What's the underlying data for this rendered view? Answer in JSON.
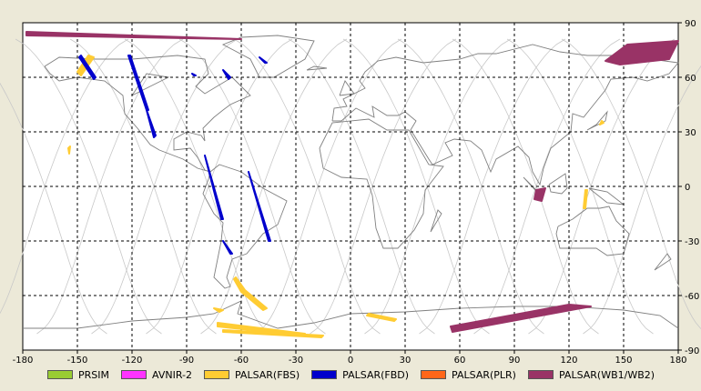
{
  "map": {
    "lon_range": [
      -180,
      180
    ],
    "lat_range": [
      -90,
      90
    ],
    "x_ticks": [
      "-180",
      "-150",
      "-120",
      "-90",
      "-60",
      "-30",
      "0",
      "30",
      "60",
      "90",
      "120",
      "150",
      "180"
    ],
    "y_ticks": [
      "90",
      "60",
      "30",
      "0",
      "-30",
      "-60",
      "-90"
    ],
    "grid": "dotted",
    "background": "#ffffff",
    "coastline_color": "#808080",
    "track_color": "#c8c8c8"
  },
  "legend": {
    "items": [
      {
        "label": "PRSIM",
        "color": "#99cc33"
      },
      {
        "label": "AVNIR-2",
        "color": "#ff33ff"
      },
      {
        "label": "PALSAR(FBS)",
        "color": "#ffcc33"
      },
      {
        "label": "PALSAR(FBD)",
        "color": "#0000cc"
      },
      {
        "label": "PALSAR(PLR)",
        "color": "#ff6619"
      },
      {
        "label": "PALSAR(WB1/WB2)",
        "color": "#993366"
      }
    ]
  },
  "chart_data": {
    "type": "map",
    "x_axis": {
      "range": [
        -180,
        180
      ],
      "ticks": [
        -180,
        -150,
        -120,
        -90,
        -60,
        -30,
        0,
        30,
        60,
        90,
        120,
        150,
        180
      ]
    },
    "y_axis": {
      "range": [
        -90,
        90
      ],
      "ticks": [
        90,
        60,
        30,
        0,
        -30,
        -60,
        -90
      ]
    },
    "scenes": {
      "PALSAR(WB1/WB2)": [
        [
          [
            -178,
            85
          ],
          [
            -60,
            81
          ],
          [
            -178,
            83
          ]
        ],
        [
          [
            140,
            69
          ],
          [
            152,
            78
          ],
          [
            182,
            80
          ],
          [
            175,
            70
          ],
          [
            148,
            67
          ]
        ],
        [
          [
            102,
            -2
          ],
          [
            107,
            -1
          ],
          [
            105,
            -8
          ],
          [
            101,
            -7
          ]
        ],
        [
          [
            55,
            -77
          ],
          [
            120,
            -65
          ],
          [
            132,
            -66
          ],
          [
            56,
            -80
          ]
        ]
      ],
      "PALSAR(FBS)": [
        [
          [
            -150,
            63
          ],
          [
            -144,
            72
          ],
          [
            -141,
            71
          ],
          [
            -148,
            61
          ]
        ],
        [
          [
            -155,
            21
          ],
          [
            -154,
            22
          ],
          [
            -154.5,
            18
          ]
        ],
        [
          [
            -63,
            -50
          ],
          [
            -58,
            -57
          ],
          [
            -46,
            -67
          ],
          [
            -48,
            -68
          ],
          [
            -60,
            -58
          ],
          [
            -64,
            -51
          ]
        ],
        [
          [
            -73,
            -75
          ],
          [
            -25,
            -81
          ],
          [
            -27,
            -82
          ],
          [
            -73,
            -77
          ]
        ],
        [
          [
            -70,
            -79
          ],
          [
            -15,
            -82
          ],
          [
            -16,
            -83
          ],
          [
            -70,
            -80
          ]
        ],
        [
          [
            -75,
            -67
          ],
          [
            -70,
            -68
          ],
          [
            -72,
            -69
          ]
        ],
        [
          [
            10,
            -70
          ],
          [
            25,
            -73
          ],
          [
            24,
            -74
          ],
          [
            9,
            -71
          ]
        ],
        [
          [
            128,
            -12
          ],
          [
            129,
            -2
          ],
          [
            130,
            -2
          ],
          [
            129,
            -12
          ]
        ],
        [
          [
            137,
            34
          ],
          [
            138,
            36
          ],
          [
            139,
            35
          ]
        ]
      ],
      "PALSAR(FBD)": [
        [
          [
            -148,
            72
          ],
          [
            -140,
            60
          ],
          [
            -141,
            59
          ],
          [
            -149,
            71
          ]
        ],
        [
          [
            -122,
            72
          ],
          [
            -112,
            42
          ],
          [
            -111,
            42
          ],
          [
            -121,
            72
          ]
        ],
        [
          [
            -112,
            42
          ],
          [
            -108,
            27
          ],
          [
            -107,
            28
          ]
        ],
        [
          [
            -86,
            61
          ],
          [
            -87,
            62
          ],
          [
            -85,
            61
          ]
        ],
        [
          [
            -70,
            64
          ],
          [
            -66,
            60
          ],
          [
            -67,
            59
          ]
        ],
        [
          [
            -50,
            71
          ],
          [
            -46,
            68
          ],
          [
            -47,
            68
          ]
        ],
        [
          [
            -80,
            17
          ],
          [
            -71,
            -18
          ],
          [
            -70,
            -18
          ]
        ],
        [
          [
            -70,
            -30
          ],
          [
            -66,
            -37
          ],
          [
            -65,
            -37
          ]
        ],
        [
          [
            -56,
            8
          ],
          [
            -45,
            -30
          ],
          [
            -44,
            -30
          ]
        ]
      ]
    },
    "coastlines": [
      [
        [
          -168,
          66
        ],
        [
          -160,
          71
        ],
        [
          -140,
          70
        ],
        [
          -120,
          70
        ],
        [
          -95,
          72
        ],
        [
          -80,
          70
        ],
        [
          -78,
          62
        ],
        [
          -85,
          55
        ],
        [
          -80,
          51
        ],
        [
          -65,
          60
        ],
        [
          -55,
          50
        ],
        [
          -66,
          45
        ],
        [
          -70,
          42
        ],
        [
          -75,
          38
        ],
        [
          -81,
          32
        ],
        [
          -80,
          25
        ],
        [
          -82,
          28
        ],
        [
          -90,
          30
        ],
        [
          -97,
          26
        ],
        [
          -97,
          20
        ],
        [
          -88,
          21
        ],
        [
          -84,
          16
        ],
        [
          -80,
          9
        ],
        [
          -77,
          8
        ],
        [
          -78,
          4
        ],
        [
          -81,
          -4
        ],
        [
          -75,
          -15
        ],
        [
          -70,
          -20
        ],
        [
          -71,
          -30
        ],
        [
          -73,
          -40
        ],
        [
          -75,
          -50
        ],
        [
          -69,
          -56
        ],
        [
          -66,
          -55
        ],
        [
          -68,
          -50
        ],
        [
          -65,
          -40
        ],
        [
          -57,
          -37
        ],
        [
          -48,
          -26
        ],
        [
          -40,
          -21
        ],
        [
          -35,
          -8
        ],
        [
          -48,
          -1
        ],
        [
          -60,
          8
        ],
        [
          -72,
          12
        ],
        [
          -77,
          8
        ],
        [
          -84,
          10
        ],
        [
          -92,
          15
        ],
        [
          -105,
          20
        ],
        [
          -110,
          23
        ],
        [
          -117,
          32
        ],
        [
          -124,
          40
        ],
        [
          -125,
          50
        ],
        [
          -135,
          58
        ],
        [
          -150,
          60
        ],
        [
          -160,
          58
        ],
        [
          -165,
          62
        ],
        [
          -168,
          66
        ]
      ],
      [
        [
          -50,
          60
        ],
        [
          -42,
          60
        ],
        [
          -25,
          70
        ],
        [
          -20,
          80
        ],
        [
          -40,
          83
        ],
        [
          -60,
          82
        ],
        [
          -70,
          78
        ],
        [
          -55,
          70
        ],
        [
          -50,
          60
        ]
      ],
      [
        [
          -10,
          36
        ],
        [
          -9,
          43
        ],
        [
          -2,
          44
        ],
        [
          -4,
          48
        ],
        [
          2,
          51
        ],
        [
          8,
          54
        ],
        [
          5,
          58
        ],
        [
          8,
          63
        ],
        [
          15,
          69
        ],
        [
          25,
          71
        ],
        [
          40,
          68
        ],
        [
          60,
          70
        ],
        [
          70,
          73
        ],
        [
          80,
          73
        ],
        [
          100,
          78
        ],
        [
          115,
          74
        ],
        [
          130,
          72
        ],
        [
          150,
          72
        ],
        [
          165,
          70
        ],
        [
          180,
          68
        ],
        [
          175,
          62
        ],
        [
          163,
          58
        ],
        [
          155,
          60
        ],
        [
          143,
          59
        ],
        [
          140,
          53
        ],
        [
          132,
          43
        ],
        [
          128,
          38
        ],
        [
          122,
          40
        ],
        [
          121,
          30
        ],
        [
          110,
          21
        ],
        [
          106,
          10
        ],
        [
          104,
          1
        ],
        [
          100,
          8
        ],
        [
          98,
          16
        ],
        [
          92,
          22
        ],
        [
          80,
          15
        ],
        [
          77,
          8
        ],
        [
          72,
          20
        ],
        [
          66,
          25
        ],
        [
          57,
          26
        ],
        [
          52,
          24
        ],
        [
          56,
          17
        ],
        [
          45,
          12
        ],
        [
          43,
          15
        ],
        [
          35,
          28
        ],
        [
          33,
          31
        ],
        [
          36,
          36
        ],
        [
          30,
          41
        ],
        [
          26,
          39
        ],
        [
          20,
          39
        ],
        [
          12,
          44
        ],
        [
          13,
          38
        ],
        [
          3,
          43
        ],
        [
          -5,
          36
        ],
        [
          -10,
          36
        ]
      ],
      [
        [
          -17,
          21
        ],
        [
          -10,
          35
        ],
        [
          10,
          37
        ],
        [
          20,
          31
        ],
        [
          32,
          31
        ],
        [
          43,
          12
        ],
        [
          51,
          11
        ],
        [
          41,
          -2
        ],
        [
          40,
          -15
        ],
        [
          35,
          -24
        ],
        [
          26,
          -34
        ],
        [
          18,
          -34
        ],
        [
          14,
          -23
        ],
        [
          12,
          -5
        ],
        [
          9,
          4
        ],
        [
          -5,
          5
        ],
        [
          -15,
          10
        ],
        [
          -17,
          21
        ]
      ],
      [
        [
          114,
          -22
        ],
        [
          122,
          -18
        ],
        [
          130,
          -12
        ],
        [
          137,
          -12
        ],
        [
          142,
          -11
        ],
        [
          146,
          -19
        ],
        [
          153,
          -26
        ],
        [
          150,
          -37
        ],
        [
          141,
          -38
        ],
        [
          135,
          -34
        ],
        [
          115,
          -34
        ],
        [
          113,
          -26
        ],
        [
          114,
          -22
        ]
      ],
      [
        [
          95,
          5
        ],
        [
          105,
          -6
        ],
        [
          103,
          -3
        ],
        [
          95,
          5
        ]
      ],
      [
        [
          109,
          1
        ],
        [
          118,
          7
        ],
        [
          119,
          -1
        ],
        [
          116,
          -4
        ],
        [
          110,
          -3
        ],
        [
          109,
          1
        ]
      ],
      [
        [
          131,
          -1
        ],
        [
          141,
          -3
        ],
        [
          150,
          -10
        ],
        [
          141,
          -9
        ],
        [
          131,
          -1
        ]
      ],
      [
        [
          130,
          31
        ],
        [
          135,
          34
        ],
        [
          141,
          41
        ],
        [
          140,
          36
        ],
        [
          130,
          31
        ]
      ],
      [
        [
          -6,
          50
        ],
        [
          2,
          51
        ],
        [
          -3,
          58
        ],
        [
          -6,
          50
        ]
      ],
      [
        [
          -24,
          64
        ],
        [
          -13,
          65
        ],
        [
          -20,
          66
        ],
        [
          -24,
          64
        ]
      ],
      [
        [
          44,
          -25
        ],
        [
          50,
          -15
        ],
        [
          48,
          -13
        ],
        [
          44,
          -25
        ]
      ],
      [
        [
          167,
          -46
        ],
        [
          174,
          -37
        ],
        [
          176,
          -40
        ],
        [
          167,
          -46
        ]
      ],
      [
        [
          -180,
          -78
        ],
        [
          -150,
          -78
        ],
        [
          -120,
          -74
        ],
        [
          -90,
          -72
        ],
        [
          -75,
          -70
        ],
        [
          -60,
          -63
        ],
        [
          -62,
          -70
        ],
        [
          -40,
          -78
        ],
        [
          -20,
          -75
        ],
        [
          0,
          -70
        ],
        [
          30,
          -69
        ],
        [
          60,
          -67
        ],
        [
          90,
          -66
        ],
        [
          120,
          -66
        ],
        [
          150,
          -68
        ],
        [
          170,
          -71
        ],
        [
          180,
          -78
        ]
      ],
      [
        [
          -120,
          50
        ],
        [
          -110,
          55
        ],
        [
          -100,
          60
        ],
        [
          -112,
          62
        ],
        [
          -120,
          50
        ]
      ]
    ],
    "orbit_tracks_lon_at_equator": [
      -168,
      -138,
      -108,
      -78,
      -48,
      -18,
      12,
      42,
      72,
      102,
      132,
      162
    ]
  }
}
